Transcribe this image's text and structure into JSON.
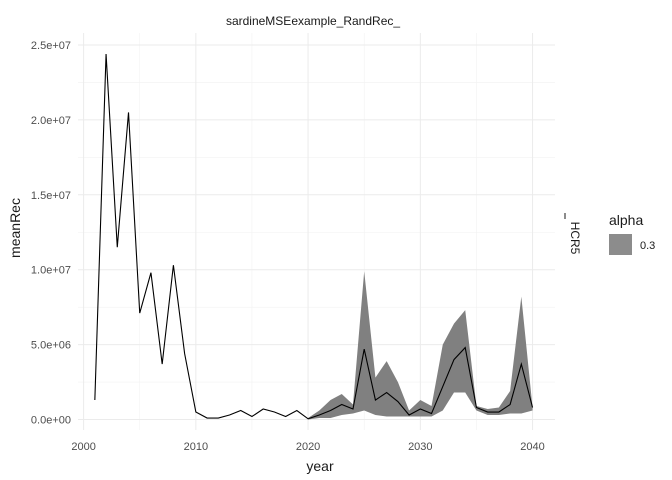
{
  "chart_data": {
    "type": "line",
    "title": "sardineMSEexample_RandRec_",
    "xlabel": "year",
    "ylabel": "meanRec",
    "xlim": [
      1999.5,
      2042
    ],
    "ylim": [
      -700000,
      25800000
    ],
    "x_ticks": [
      2000,
      2010,
      2020,
      2030,
      2040
    ],
    "x_tick_labels": [
      "2000",
      "2010",
      "2020",
      "2030",
      "2040"
    ],
    "y_ticks": [
      0,
      5000000,
      10000000,
      15000000,
      20000000,
      25000000
    ],
    "y_tick_labels": [
      "0.0e+00",
      "5.0e+06",
      "1.0e+07",
      "1.5e+07",
      "2.0e+07",
      "2.5e+07"
    ],
    "grid": true,
    "facet_label": "HCR5",
    "series": [
      {
        "type": "line",
        "color": "#000000",
        "x": [
          2001,
          2002,
          2003,
          2004,
          2005,
          2006,
          2007,
          2008,
          2009,
          2010,
          2011,
          2012,
          2013,
          2014,
          2015,
          2016,
          2017,
          2018,
          2019,
          2020,
          2021,
          2022,
          2023,
          2024,
          2025,
          2026,
          2027,
          2028,
          2029,
          2030,
          2031,
          2032,
          2033,
          2034,
          2035,
          2036,
          2037,
          2038,
          2039,
          2040
        ],
        "y": [
          1300000,
          24400000,
          11500000,
          20500000,
          7100000,
          9800000,
          3700000,
          10300000,
          4400000,
          500000,
          100000,
          100000,
          300000,
          600000,
          200000,
          700000,
          500000,
          200000,
          600000,
          50000,
          300000,
          600000,
          1000000,
          700000,
          4700000,
          1300000,
          1800000,
          1200000,
          300000,
          700000,
          400000,
          2200000,
          4000000,
          4800000,
          800000,
          500000,
          500000,
          1000000,
          3700000,
          800000
        ]
      }
    ],
    "ribbon": {
      "fill": "#808080",
      "alpha_label": "0.3",
      "x": [
        2020,
        2021,
        2022,
        2023,
        2024,
        2025,
        2026,
        2027,
        2028,
        2029,
        2030,
        2031,
        2032,
        2033,
        2034,
        2035,
        2036,
        2037,
        2038,
        2039,
        2040
      ],
      "lower": [
        0,
        100000,
        100000,
        300000,
        400000,
        600000,
        300000,
        200000,
        200000,
        200000,
        200000,
        200000,
        600000,
        1800000,
        1800000,
        600000,
        300000,
        300000,
        400000,
        400000,
        600000
      ],
      "upper": [
        100000,
        600000,
        1300000,
        1700000,
        1000000,
        9900000,
        2800000,
        3900000,
        2500000,
        600000,
        1300000,
        900000,
        5000000,
        6400000,
        7300000,
        900000,
        700000,
        800000,
        1900000,
        8200000,
        800000
      ]
    },
    "legend": {
      "title": "alpha",
      "entries": [
        "0.3"
      ],
      "placement": "right"
    }
  }
}
